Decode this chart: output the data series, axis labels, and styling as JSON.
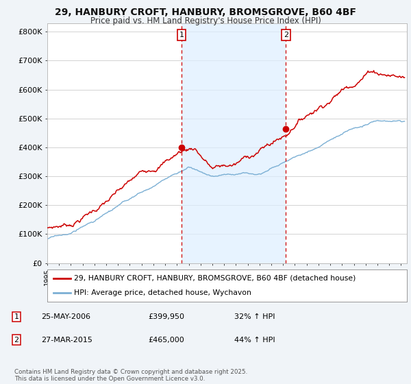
{
  "title_line1": "29, HANBURY CROFT, HANBURY, BROMSGROVE, B60 4BF",
  "title_line2": "Price paid vs. HM Land Registry's House Price Index (HPI)",
  "yticks": [
    0,
    100000,
    200000,
    300000,
    400000,
    500000,
    600000,
    700000,
    800000
  ],
  "ytick_labels": [
    "£0",
    "£100K",
    "£200K",
    "£300K",
    "£400K",
    "£500K",
    "£600K",
    "£700K",
    "£800K"
  ],
  "ylim": [
    0,
    830000
  ],
  "xlim_start": 1995.0,
  "xlim_end": 2025.5,
  "red_line_label": "29, HANBURY CROFT, HANBURY, BROMSGROVE, B60 4BF (detached house)",
  "blue_line_label": "HPI: Average price, detached house, Wychavon",
  "sale1_x": 2006.38,
  "sale1_y": 399950,
  "sale2_x": 2015.23,
  "sale2_y": 465000,
  "sale1_date": "25-MAY-2006",
  "sale1_price": "£399,950",
  "sale1_hpi": "32% ↑ HPI",
  "sale2_date": "27-MAR-2015",
  "sale2_price": "£465,000",
  "sale2_hpi": "44% ↑ HPI",
  "footer": "Contains HM Land Registry data © Crown copyright and database right 2025.\nThis data is licensed under the Open Government Licence v3.0.",
  "bg_color": "#f0f4f8",
  "plot_bg_color": "#ffffff",
  "red_color": "#cc0000",
  "blue_color": "#7bafd4",
  "shade_color": "#ddeeff",
  "grid_color": "#cccccc",
  "box_color": "#cc0000"
}
